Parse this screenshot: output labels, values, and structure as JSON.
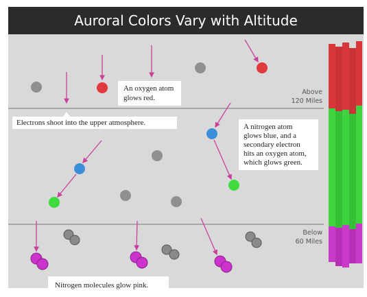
{
  "header": {
    "title": "Auroral Colors Vary with Altitude"
  },
  "annotations": [
    {
      "lines": [
        "An oxygen atom",
        "glows red."
      ]
    },
    {
      "lines": [
        "Electrons shoot into the upper atmosphere."
      ]
    },
    {
      "lines": [
        "A nitrogen atom",
        "glows blue, and a",
        "secondary electron",
        "hits an oxygen atom,",
        "which glows green."
      ]
    },
    {
      "lines": [
        "Nitrogen molecules glow pink."
      ]
    }
  ],
  "altitudes": [
    {
      "lines": [
        "Above",
        "120 Miles"
      ]
    },
    {
      "lines": [
        "Below",
        "60 Miles"
      ]
    }
  ]
}
